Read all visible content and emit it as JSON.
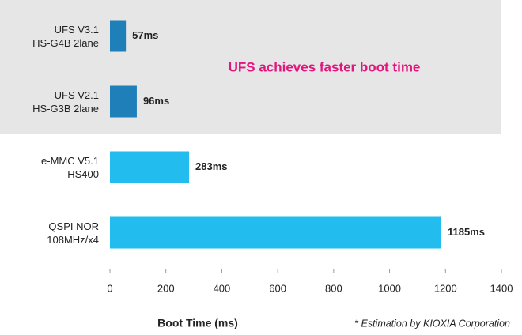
{
  "chart_data": {
    "type": "hbar",
    "categories": [
      "UFS V3.1\nHS-G4B 2lane",
      "UFS V2.1\nHS-G3B 2lane",
      "e-MMC V5.1\nHS400",
      "QSPI NOR\n108MHz/x4"
    ],
    "values": [
      57,
      96,
      283,
      1185
    ],
    "value_labels": [
      "57ms",
      "96ms",
      "283ms",
      "1185ms"
    ],
    "colors": [
      "#1f7fb8",
      "#1f7fb8",
      "#22bdee",
      "#22bdee"
    ],
    "xlabel": "Boot Time (ms)",
    "xlim": [
      0,
      1400
    ],
    "xticks": [
      0,
      200,
      400,
      600,
      800,
      1000,
      1200,
      1400
    ],
    "annotation": "UFS achieves faster boot time",
    "footnote": "* Estimation by KIOXIA Corporation"
  }
}
